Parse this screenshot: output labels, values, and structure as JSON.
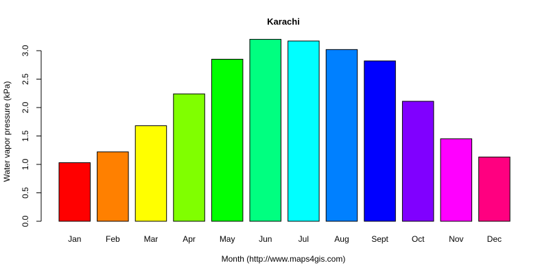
{
  "chart_data": {
    "type": "bar",
    "title": "Karachi",
    "xlabel": "Month (http://www.maps4gis.com)",
    "ylabel": "Water vapor pressure (kPa)",
    "ylim": [
      0,
      3.0
    ],
    "yticks": [
      "0.0",
      "0.5",
      "1.0",
      "1.5",
      "2.0",
      "2.5",
      "3.0"
    ],
    "categories": [
      "Jan",
      "Feb",
      "Mar",
      "Apr",
      "May",
      "Jun",
      "Jul",
      "Aug",
      "Sept",
      "Oct",
      "Nov",
      "Dec"
    ],
    "values": [
      1.03,
      1.22,
      1.68,
      2.24,
      2.85,
      3.2,
      3.17,
      3.02,
      2.82,
      2.11,
      1.45,
      1.13
    ],
    "colors": [
      "#FF0000",
      "#FF8000",
      "#FFFF00",
      "#80FF00",
      "#00FF00",
      "#00FF80",
      "#00FFFF",
      "#0080FF",
      "#0000FF",
      "#8000FF",
      "#FF00FF",
      "#FF0080"
    ],
    "grid": false,
    "legend": "none"
  }
}
